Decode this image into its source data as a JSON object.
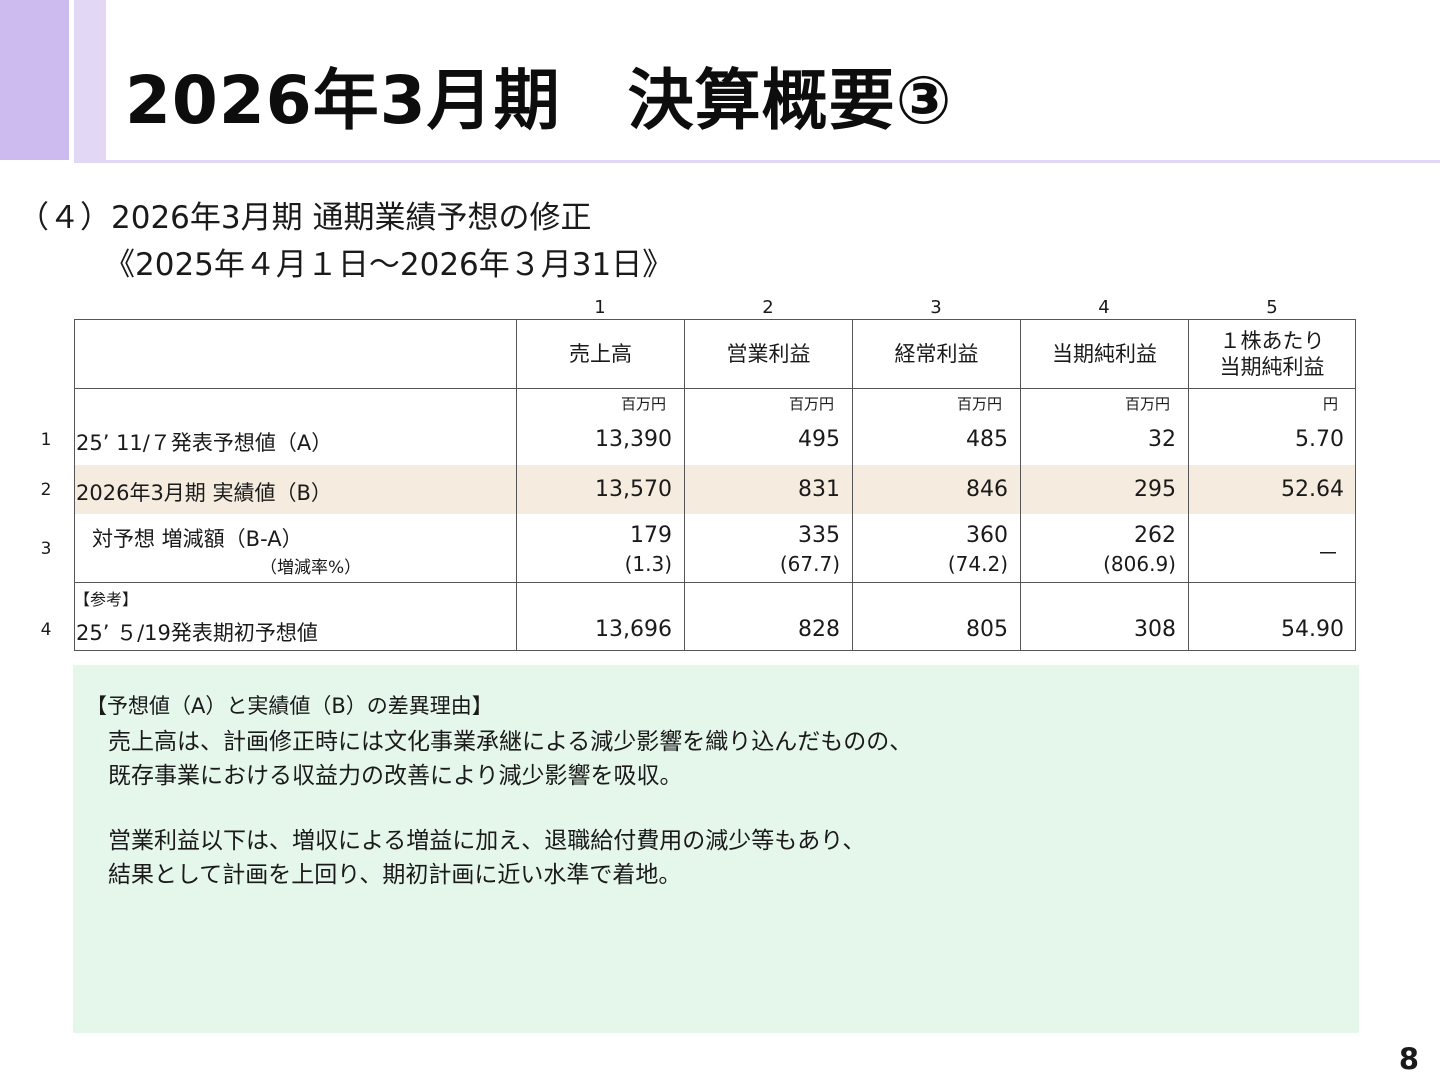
{
  "slide": {
    "title": "2026年3月期　決算概要③",
    "subtitle": "（４）2026年3月期 通期業績予想の修正",
    "period": "《2025年４月１日～2026年３月31日》",
    "page_number": "8"
  },
  "table": {
    "column_numbers": [
      "1",
      "2",
      "3",
      "4",
      "5"
    ],
    "headers": [
      "売上高",
      "営業利益",
      "経常利益",
      "当期純利益",
      "１株あたり",
      "当期純利益"
    ],
    "units": [
      "百万円",
      "百万円",
      "百万円",
      "百万円",
      "円"
    ],
    "row_numbers": [
      "1",
      "2",
      "3",
      "4"
    ],
    "rows": [
      {
        "label": "25’ 11/７発表予想値（A）",
        "values": [
          "13,390",
          "495",
          "485",
          "32",
          "5.70"
        ]
      },
      {
        "label": "2026年3月期  実績値（B）",
        "values": [
          "13,570",
          "831",
          "846",
          "295",
          "52.64"
        ]
      },
      {
        "label": "対予想  増減額（B-A）",
        "sublabel": "（増減率%）",
        "values": [
          "179",
          "335",
          "360",
          "262",
          "－"
        ],
        "rates": [
          "(1.3)",
          "(67.7)",
          "(74.2)",
          "(806.9)"
        ]
      },
      {
        "tag": "【参考】",
        "label": "25’ ５/19発表期初予想値",
        "values": [
          "13,696",
          "828",
          "805",
          "308",
          "54.90"
        ]
      }
    ]
  },
  "note": {
    "heading": "【予想値（A）と実績値（B）の差異理由】",
    "lines": [
      "売上高は、計画修正時には文化事業承継による減少影響を織り込んだものの、",
      "既存事業における収益力の改善により減少影響を吸収。",
      "営業利益以下は、増収による増益に加え、退職給付費用の減少等もあり、",
      "結果として計画を上回り、期初計画に近い水準で着地。"
    ]
  },
  "colors": {
    "accent_purple": "#cdbaee",
    "light_purple": "#e2d8f5",
    "highlight_row": "#f5ebdf",
    "note_bg": "#e5f6ea"
  }
}
